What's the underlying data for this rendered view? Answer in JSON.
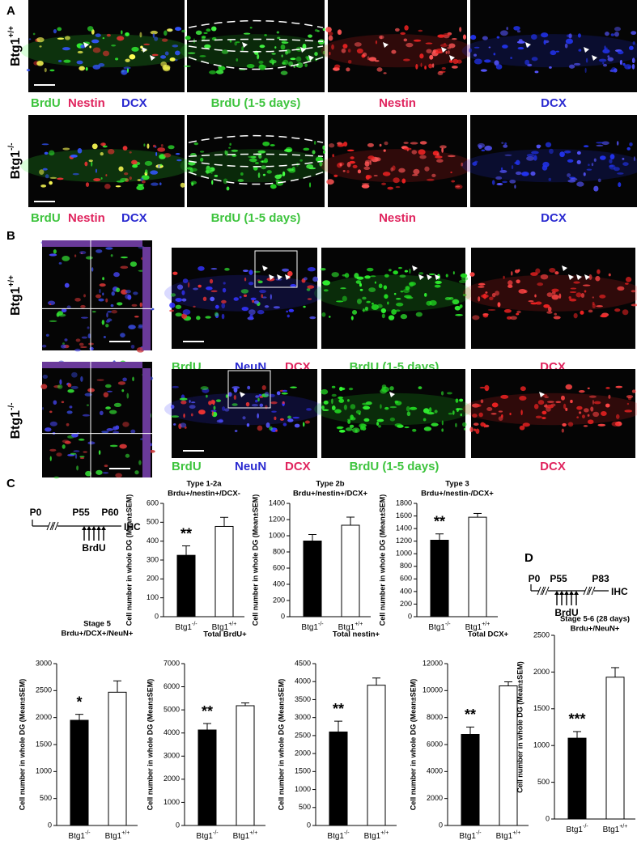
{
  "figure": {
    "panel_labels": [
      "A",
      "B",
      "C",
      "D"
    ],
    "genotypes": [
      {
        "base": "Btg1",
        "sup": "+/+"
      },
      {
        "base": "Btg1",
        "sup": "-/-"
      }
    ],
    "panel_a": {
      "merge": [
        "BrdU",
        "Nestin",
        "DCX"
      ],
      "singles": [
        "BrdU (1-5 days)",
        "Nestin",
        "DCX"
      ]
    },
    "panel_b": {
      "merge": [
        "BrdU",
        "NeuN",
        "DCX"
      ],
      "singles": [
        "BrdU (1-5 days)",
        "DCX"
      ]
    },
    "timeline_c": {
      "marks": [
        "P0",
        "P55",
        "P60",
        "IHC"
      ],
      "injection": "BrdU"
    },
    "timeline_d": {
      "marks": [
        "P0",
        "P55",
        "P83",
        "IHC"
      ],
      "injection": "BrdU"
    }
  },
  "chart_data": [
    {
      "type": "bar",
      "title": [
        "Type 1-2a",
        "Brdu+/nestin+/DCX-"
      ],
      "ylabel": "Cell number in whole DG (Mean±SEM)",
      "categories": [
        {
          "base": "Btg1",
          "sup": "-/-"
        },
        {
          "base": "Btg1",
          "sup": "+/+"
        }
      ],
      "values": [
        325,
        478
      ],
      "errors": [
        50,
        48
      ],
      "colors": [
        "#000000",
        "#ffffff"
      ],
      "ylim": [
        0,
        600
      ],
      "yticks": [
        0,
        100,
        200,
        300,
        400,
        500,
        600
      ],
      "annotation": "**"
    },
    {
      "type": "bar",
      "title": [
        "Type 2b",
        "Brdu+/nestin+/DCX+"
      ],
      "ylabel": "Cell number in whole DG (Mean±SEM)",
      "categories": [
        {
          "base": "Btg1",
          "sup": "-/-"
        },
        {
          "base": "Btg1",
          "sup": "+/+"
        }
      ],
      "values": [
        935,
        1130
      ],
      "errors": [
        80,
        100
      ],
      "colors": [
        "#000000",
        "#ffffff"
      ],
      "ylim": [
        0,
        1400
      ],
      "yticks": [
        0,
        200,
        400,
        600,
        800,
        1000,
        1200,
        1400
      ]
    },
    {
      "type": "bar",
      "title": [
        "Type 3",
        "Brdu+/nestin-/DCX+"
      ],
      "ylabel": "Cell number in whole DG (Mean±SEM)",
      "categories": [
        {
          "base": "Btg1",
          "sup": "-/-"
        },
        {
          "base": "Btg1",
          "sup": "+/+"
        }
      ],
      "values": [
        1215,
        1580
      ],
      "errors": [
        100,
        60
      ],
      "colors": [
        "#000000",
        "#ffffff"
      ],
      "ylim": [
        0,
        1800
      ],
      "yticks": [
        0,
        200,
        400,
        600,
        800,
        1000,
        1200,
        1400,
        1600,
        1800
      ],
      "annotation": "**"
    },
    {
      "type": "bar",
      "title": [
        "Stage 5",
        "Brdu+/DCX+/NeuN+"
      ],
      "ylabel": "Cell number in whole DG (Mean±SEM)",
      "categories": [
        {
          "base": "Btg1",
          "sup": "-/-"
        },
        {
          "base": "Btg1",
          "sup": "+/+"
        }
      ],
      "values": [
        1950,
        2470
      ],
      "errors": [
        110,
        210
      ],
      "colors": [
        "#000000",
        "#ffffff"
      ],
      "ylim": [
        0,
        3000
      ],
      "yticks": [
        0,
        500,
        1000,
        1500,
        2000,
        2500,
        3000
      ],
      "annotation": "*"
    },
    {
      "type": "bar",
      "title": [
        "Total BrdU+"
      ],
      "ylabel": "Cell number in whole DG (Mean±SEM)",
      "categories": [
        {
          "base": "Btg1",
          "sup": "-/-"
        },
        {
          "base": "Btg1",
          "sup": "+/+"
        }
      ],
      "values": [
        4130,
        5180
      ],
      "errors": [
        280,
        120
      ],
      "colors": [
        "#000000",
        "#ffffff"
      ],
      "ylim": [
        0,
        7000
      ],
      "yticks": [
        0,
        1000,
        2000,
        3000,
        4000,
        5000,
        6000,
        7000
      ],
      "annotation": "**"
    },
    {
      "type": "bar",
      "title": [
        "Total nestin+"
      ],
      "ylabel": "Cell number in whole DG (Mean±SEM)",
      "categories": [
        {
          "base": "Btg1",
          "sup": "-/-"
        },
        {
          "base": "Btg1",
          "sup": "+/+"
        }
      ],
      "values": [
        2600,
        3900
      ],
      "errors": [
        300,
        200
      ],
      "colors": [
        "#000000",
        "#ffffff"
      ],
      "ylim": [
        0,
        4500
      ],
      "yticks": [
        0,
        500,
        1000,
        1500,
        2000,
        2500,
        3000,
        3500,
        4000,
        4500
      ],
      "annotation": "**"
    },
    {
      "type": "bar",
      "title": [
        "Total DCX+"
      ],
      "ylabel": "Cell number in whole DG (Mean±SEM)",
      "categories": [
        {
          "base": "Btg1",
          "sup": "-/-"
        },
        {
          "base": "Btg1",
          "sup": "+/+"
        }
      ],
      "values": [
        6750,
        10350
      ],
      "errors": [
        550,
        300
      ],
      "colors": [
        "#000000",
        "#ffffff"
      ],
      "ylim": [
        0,
        12000
      ],
      "yticks": [
        0,
        2000,
        4000,
        6000,
        8000,
        10000,
        12000
      ],
      "annotation": "**"
    },
    {
      "type": "bar",
      "title": [
        "Stage 5-6 (28 days)",
        "Brdu+/NeuN+"
      ],
      "ylabel": "Cell number in whole DG (Mean±SEM)",
      "categories": [
        {
          "base": "Btg1",
          "sup": "-/-"
        },
        {
          "base": "Btg1",
          "sup": "+/+"
        }
      ],
      "values": [
        1100,
        1930
      ],
      "errors": [
        90,
        130
      ],
      "colors": [
        "#000000",
        "#ffffff"
      ],
      "ylim": [
        0,
        2500
      ],
      "yticks": [
        0,
        500,
        1000,
        1500,
        2000,
        2500
      ],
      "annotation": "***"
    }
  ]
}
